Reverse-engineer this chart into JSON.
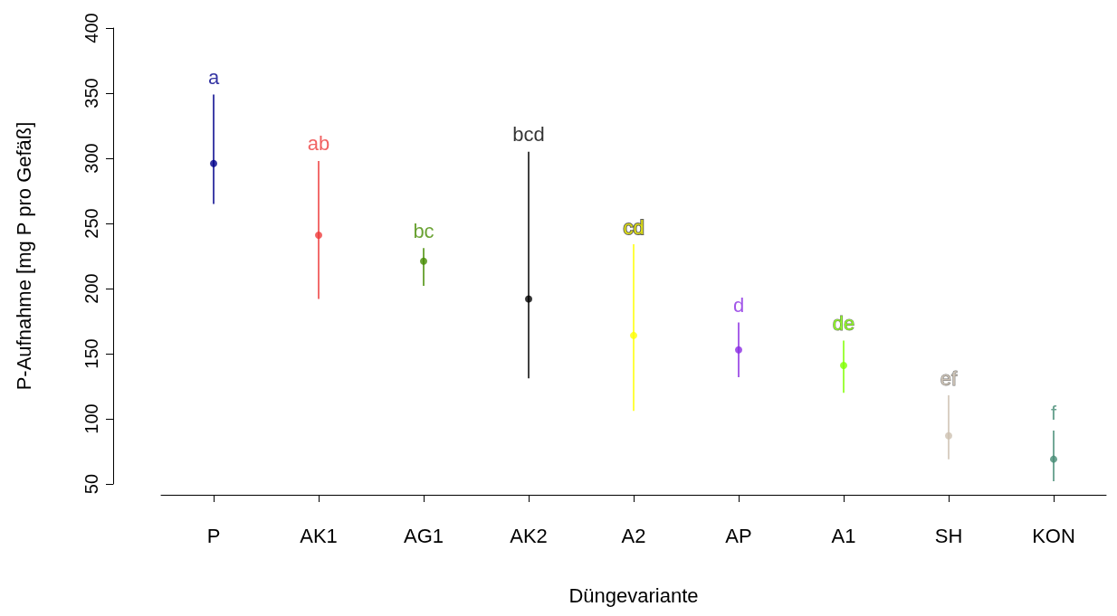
{
  "chart_data": {
    "type": "scatter",
    "xlabel": "Düngevariante",
    "ylabel": "P-Aufnahme [mg P pro Gefäß]",
    "categories": [
      "P",
      "AK1",
      "AG1",
      "AK2",
      "A2",
      "AP",
      "A1",
      "SH",
      "KON"
    ],
    "values": [
      296,
      241,
      221,
      192,
      164,
      153,
      141,
      87,
      69
    ],
    "errors": [
      [
        265,
        349
      ],
      [
        192,
        298
      ],
      [
        202,
        231
      ],
      [
        131,
        305
      ],
      [
        106,
        234
      ],
      [
        132,
        174
      ],
      [
        120,
        160
      ],
      [
        69,
        118
      ],
      [
        52,
        91
      ]
    ],
    "colors": [
      "#00008b",
      "#ee3b3b",
      "#458b00",
      "#000000",
      "#ffff00",
      "#8a2be2",
      "#7fff00",
      "#cdc0b0",
      "#458b74"
    ],
    "ylim": [
      50,
      400
    ],
    "yticks": [
      50,
      100,
      150,
      200,
      250,
      300,
      350,
      400
    ],
    "grid": false,
    "marker": "circle",
    "annotations": [
      "a",
      "ab",
      "bc",
      "bcd",
      "cd",
      "d",
      "de",
      "ef",
      "f"
    ]
  }
}
